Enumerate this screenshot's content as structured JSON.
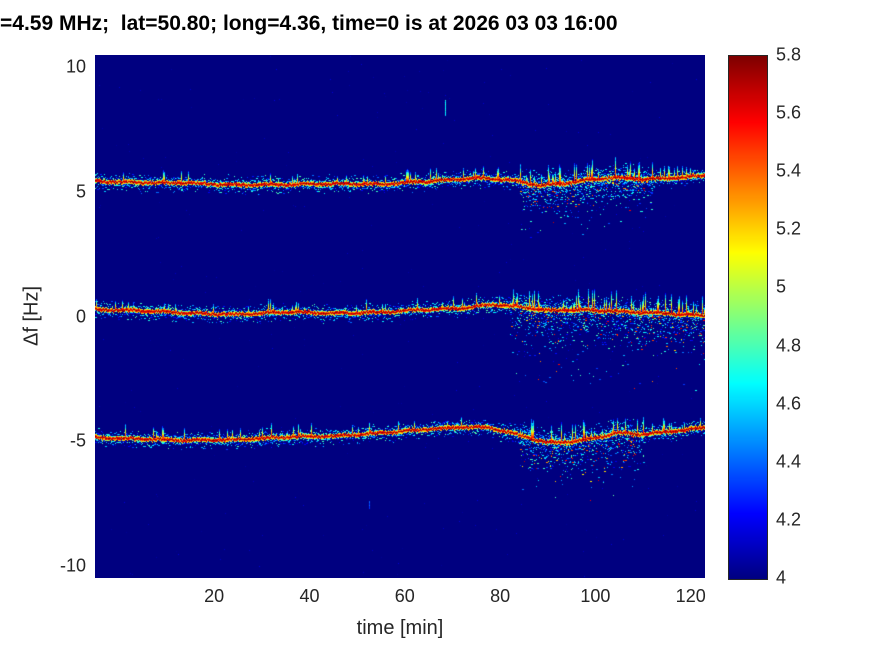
{
  "chart_data": {
    "type": "heatmap",
    "title": "=4.59 MHz;  lat=50.80; long=4.36, time=0 is at 2026 03 03 16:00",
    "xlabel": "time [min]",
    "ylabel": "Δf [Hz]",
    "colormap": "jet",
    "grid": false,
    "xlim": [
      -5,
      123
    ],
    "ylim": [
      -10.5,
      10.5
    ],
    "clim": [
      4,
      5.8
    ],
    "background_value": 4,
    "xticks": [
      "20",
      "40",
      "60",
      "80",
      "100",
      "120"
    ],
    "yticks": [
      "10",
      "5",
      "0",
      "-5",
      "-10"
    ],
    "colorbar": {
      "position": "right",
      "ticks": [
        "5.8",
        "5.6",
        "5.4",
        "5.2",
        "5",
        "4.8",
        "4.6",
        "4.4",
        "4.2",
        "4"
      ]
    },
    "traces": [
      {
        "name": "upper-doppler-trace",
        "nominal_offset_hz": 5.4,
        "points": [
          [
            -5,
            5.45
          ],
          [
            5,
            5.4
          ],
          [
            15,
            5.38
          ],
          [
            25,
            5.3
          ],
          [
            35,
            5.32
          ],
          [
            45,
            5.35
          ],
          [
            55,
            5.33
          ],
          [
            65,
            5.45
          ],
          [
            75,
            5.58
          ],
          [
            82,
            5.5
          ],
          [
            88,
            5.28
          ],
          [
            93,
            5.35
          ],
          [
            98,
            5.5
          ],
          [
            104,
            5.6
          ],
          [
            110,
            5.52
          ],
          [
            116,
            5.58
          ],
          [
            123,
            5.68
          ]
        ],
        "disturbance": {
          "t0": 84,
          "t1": 112,
          "spread_hz": 1.3
        }
      },
      {
        "name": "middle-doppler-trace",
        "nominal_offset_hz": 0,
        "points": [
          [
            -5,
            0.3
          ],
          [
            5,
            0.25
          ],
          [
            15,
            0.15
          ],
          [
            25,
            0.1
          ],
          [
            35,
            0.2
          ],
          [
            45,
            0.15
          ],
          [
            55,
            0.2
          ],
          [
            65,
            0.3
          ],
          [
            72,
            0.35
          ],
          [
            78,
            0.5
          ],
          [
            84,
            0.4
          ],
          [
            90,
            0.25
          ],
          [
            96,
            0.3
          ],
          [
            102,
            0.25
          ],
          [
            108,
            0.2
          ],
          [
            114,
            0.15
          ],
          [
            123,
            0.05
          ]
        ],
        "disturbance": {
          "t0": 82,
          "t1": 123,
          "spread_hz": 1.8
        }
      },
      {
        "name": "lower-doppler-trace",
        "nominal_offset_hz": -4.8,
        "points": [
          [
            -5,
            -4.85
          ],
          [
            5,
            -4.9
          ],
          [
            15,
            -4.95
          ],
          [
            25,
            -4.92
          ],
          [
            35,
            -4.82
          ],
          [
            45,
            -4.78
          ],
          [
            55,
            -4.65
          ],
          [
            65,
            -4.5
          ],
          [
            72,
            -4.42
          ],
          [
            78,
            -4.45
          ],
          [
            84,
            -4.75
          ],
          [
            90,
            -5.05
          ],
          [
            95,
            -5.0
          ],
          [
            100,
            -4.85
          ],
          [
            105,
            -4.65
          ],
          [
            110,
            -4.72
          ],
          [
            116,
            -4.6
          ],
          [
            123,
            -4.42
          ]
        ],
        "disturbance": {
          "t0": 84,
          "t1": 110,
          "spread_hz": 1.5
        }
      }
    ],
    "artifacts": [
      {
        "t": 68.5,
        "f_top": 8.7,
        "f_bottom": 8.1,
        "value": 4.55
      },
      {
        "t": 52.5,
        "f_top": -7.4,
        "f_bottom": -7.7,
        "value": 4.3
      }
    ]
  }
}
